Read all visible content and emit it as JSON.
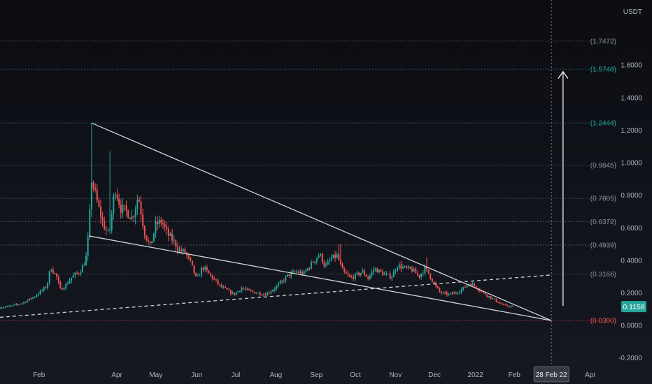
{
  "chart_data": {
    "type": "candlestick",
    "price_unit": "USDT",
    "y_range": [
      -0.36,
      2.0
    ],
    "y_ticks": [
      {
        "value": 1.6,
        "label": "1.6000"
      },
      {
        "value": 1.4,
        "label": "1.4000"
      },
      {
        "value": 1.2,
        "label": "1.2000"
      },
      {
        "value": 1.0,
        "label": "1.0000"
      },
      {
        "value": 0.8,
        "label": "0.8000"
      },
      {
        "value": 0.6,
        "label": "0.6000"
      },
      {
        "value": 0.4,
        "label": "0.4000"
      },
      {
        "value": 0.2,
        "label": "0.2000"
      },
      {
        "value": 0.0,
        "label": "0.0000"
      },
      {
        "value": -0.2,
        "label": "-0.2000"
      }
    ],
    "x_ticks": [
      {
        "t": 1.0,
        "label": "Feb"
      },
      {
        "t": 3.0,
        "label": "Apr"
      },
      {
        "t": 4.0,
        "label": "May"
      },
      {
        "t": 5.05,
        "label": "Jun"
      },
      {
        "t": 6.05,
        "label": "Jul"
      },
      {
        "t": 7.08,
        "label": "Aug"
      },
      {
        "t": 8.12,
        "label": "Sep"
      },
      {
        "t": 9.12,
        "label": "Oct"
      },
      {
        "t": 10.15,
        "label": "Nov"
      },
      {
        "t": 11.15,
        "label": "Dec"
      },
      {
        "t": 12.2,
        "label": "2022"
      },
      {
        "t": 13.2,
        "label": "Feb"
      },
      {
        "t": 15.15,
        "label": "Apr"
      }
    ],
    "fib_levels": [
      {
        "value": 1.7472,
        "label": "(1.7472)",
        "color": "#8a8d96"
      },
      {
        "value": 1.5748,
        "label": "(1.5748)",
        "color": "#26a69a"
      },
      {
        "value": 1.2444,
        "label": "(1.2444)",
        "color": "#26a69a"
      },
      {
        "value": 0.9845,
        "label": "(0.9845)",
        "color": "#8a8d96"
      },
      {
        "value": 0.7805,
        "label": "(0.7805)",
        "color": "#8a8d96"
      },
      {
        "value": 0.6372,
        "label": "(0.6372)",
        "color": "#8a8d96"
      },
      {
        "value": 0.4939,
        "label": "(0.4939)",
        "color": "#8a8d96"
      },
      {
        "value": 0.3166,
        "label": "(0.3166)",
        "color": "#8a8d96"
      },
      {
        "value": 0.03,
        "label": "(0.0300)",
        "color": "#ef5350"
      }
    ],
    "last_price": {
      "value": 0.1158,
      "label": "0.1158",
      "color": "#26a69a"
    },
    "date_marker": {
      "t": 14.15,
      "label": "28 Feb 22"
    },
    "trendlines": [
      {
        "from": [
          2.35,
          1.244
        ],
        "to": [
          14.15,
          0.03
        ],
        "style": "solid"
      },
      {
        "from": [
          2.28,
          0.55
        ],
        "to": [
          14.15,
          0.03
        ],
        "style": "solid"
      },
      {
        "from": [
          0.0,
          0.05
        ],
        "to": [
          14.15,
          0.31
        ],
        "style": "dashed"
      }
    ],
    "arrow": {
      "from": [
        14.45,
        0.12
      ],
      "to": [
        14.45,
        1.56
      ]
    },
    "price_path": [
      [
        0.0,
        0.11
      ],
      [
        0.3,
        0.12
      ],
      [
        0.6,
        0.14
      ],
      [
        0.9,
        0.18
      ],
      [
        1.2,
        0.24
      ],
      [
        1.3,
        0.36
      ],
      [
        1.45,
        0.3
      ],
      [
        1.55,
        0.22
      ],
      [
        1.7,
        0.25
      ],
      [
        1.85,
        0.3
      ],
      [
        2.05,
        0.33
      ],
      [
        2.2,
        0.4
      ],
      [
        2.28,
        0.58
      ],
      [
        2.35,
        0.9
      ],
      [
        2.5,
        0.75
      ],
      [
        2.65,
        0.62
      ],
      [
        2.8,
        0.55
      ],
      [
        2.95,
        0.85
      ],
      [
        3.1,
        0.72
      ],
      [
        3.25,
        0.7
      ],
      [
        3.4,
        0.66
      ],
      [
        3.55,
        0.8
      ],
      [
        3.7,
        0.58
      ],
      [
        3.85,
        0.48
      ],
      [
        4.0,
        0.62
      ],
      [
        4.15,
        0.64
      ],
      [
        4.3,
        0.56
      ],
      [
        4.45,
        0.52
      ],
      [
        4.6,
        0.46
      ],
      [
        4.75,
        0.45
      ],
      [
        4.9,
        0.38
      ],
      [
        5.05,
        0.28
      ],
      [
        5.2,
        0.36
      ],
      [
        5.35,
        0.32
      ],
      [
        5.5,
        0.28
      ],
      [
        5.65,
        0.24
      ],
      [
        5.8,
        0.22
      ],
      [
        6.0,
        0.19
      ],
      [
        6.2,
        0.23
      ],
      [
        6.4,
        0.21
      ],
      [
        6.6,
        0.2
      ],
      [
        6.8,
        0.19
      ],
      [
        7.0,
        0.22
      ],
      [
        7.2,
        0.26
      ],
      [
        7.4,
        0.31
      ],
      [
        7.6,
        0.33
      ],
      [
        7.8,
        0.32
      ],
      [
        8.0,
        0.38
      ],
      [
        8.2,
        0.44
      ],
      [
        8.35,
        0.36
      ],
      [
        8.5,
        0.41
      ],
      [
        8.65,
        0.43
      ],
      [
        8.8,
        0.33
      ],
      [
        9.0,
        0.29
      ],
      [
        9.15,
        0.31
      ],
      [
        9.3,
        0.33
      ],
      [
        9.45,
        0.29
      ],
      [
        9.6,
        0.35
      ],
      [
        9.75,
        0.33
      ],
      [
        9.9,
        0.31
      ],
      [
        10.05,
        0.3
      ],
      [
        10.2,
        0.37
      ],
      [
        10.4,
        0.35
      ],
      [
        10.6,
        0.34
      ],
      [
        10.75,
        0.3
      ],
      [
        10.9,
        0.35
      ],
      [
        11.0,
        0.32
      ],
      [
        11.15,
        0.25
      ],
      [
        11.3,
        0.2
      ],
      [
        11.5,
        0.19
      ],
      [
        11.7,
        0.2
      ],
      [
        11.9,
        0.23
      ],
      [
        12.05,
        0.26
      ],
      [
        12.2,
        0.24
      ],
      [
        12.4,
        0.2
      ],
      [
        12.6,
        0.17
      ],
      [
        12.8,
        0.14
      ],
      [
        12.95,
        0.12
      ],
      [
        13.1,
        0.118
      ],
      [
        13.2,
        0.1158
      ]
    ]
  }
}
